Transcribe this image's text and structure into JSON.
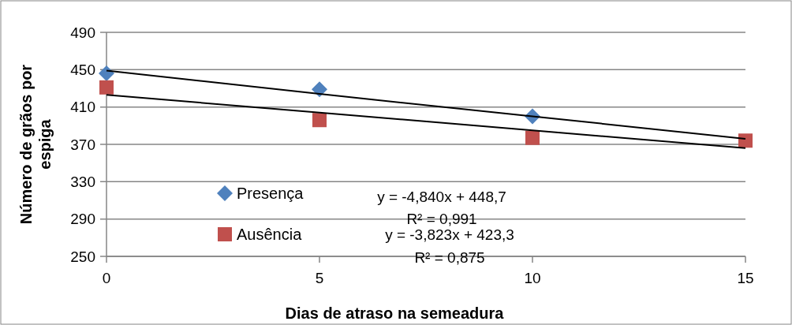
{
  "chart_data": {
    "type": "scatter",
    "xlabel": "Dias de atraso na semeadura",
    "ylabel": "Número de grãos por espiga",
    "x": [
      0,
      5,
      10,
      15
    ],
    "xlim": [
      0,
      15
    ],
    "xticks": [
      0,
      5,
      10,
      15
    ],
    "ylim": [
      250,
      490
    ],
    "yticks": [
      250,
      290,
      330,
      370,
      410,
      450,
      490
    ],
    "grid": "y",
    "legend": "bottom left",
    "series": [
      {
        "name": "Presença",
        "color": "#4f81bd",
        "marker": "diamond",
        "values": [
          446,
          429,
          400,
          null
        ]
      },
      {
        "name": "Ausência",
        "color": "#c0504d",
        "marker": "square",
        "values": [
          431,
          396,
          377,
          374
        ]
      },
      {
        "type": "line",
        "color": "#000000",
        "values": [
          449,
          424,
          400,
          376
        ]
      },
      {
        "type": "line",
        "color": "#000000",
        "values": [
          423,
          404,
          385,
          366
        ]
      }
    ],
    "annotations": [
      "y = -4,840x + 448,7",
      "R² = 0,991",
      "y = -3,823x + 423,3",
      "R² = 0,875"
    ]
  }
}
